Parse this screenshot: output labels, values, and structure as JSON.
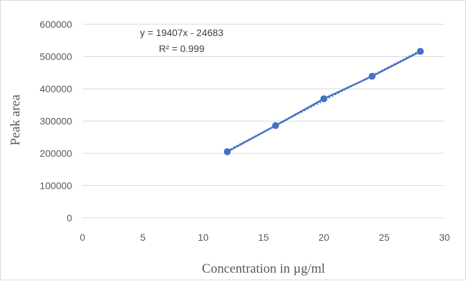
{
  "chart_data": {
    "type": "scatter",
    "xlabel": "Concentration in µg/ml",
    "ylabel": "Peak area",
    "xlim": [
      0,
      30
    ],
    "ylim": [
      0,
      600000
    ],
    "x_ticks": [
      "0",
      "5",
      "10",
      "15",
      "20",
      "25",
      "30"
    ],
    "y_ticks": [
      "0",
      "100000",
      "200000",
      "300000",
      "400000",
      "500000",
      "600000"
    ],
    "grid": "horizontal",
    "legend": "none",
    "series": [
      {
        "x": [
          12,
          16,
          20,
          24,
          28
        ],
        "y": [
          205000,
          286000,
          369000,
          439000,
          516000
        ],
        "color": "#4472C4"
      }
    ],
    "trendline": {
      "slope": 19407,
      "intercept": -24683,
      "style": "dotted",
      "equation": "y = 19407x - 24683",
      "r2_label": "R² = 0.999"
    }
  }
}
